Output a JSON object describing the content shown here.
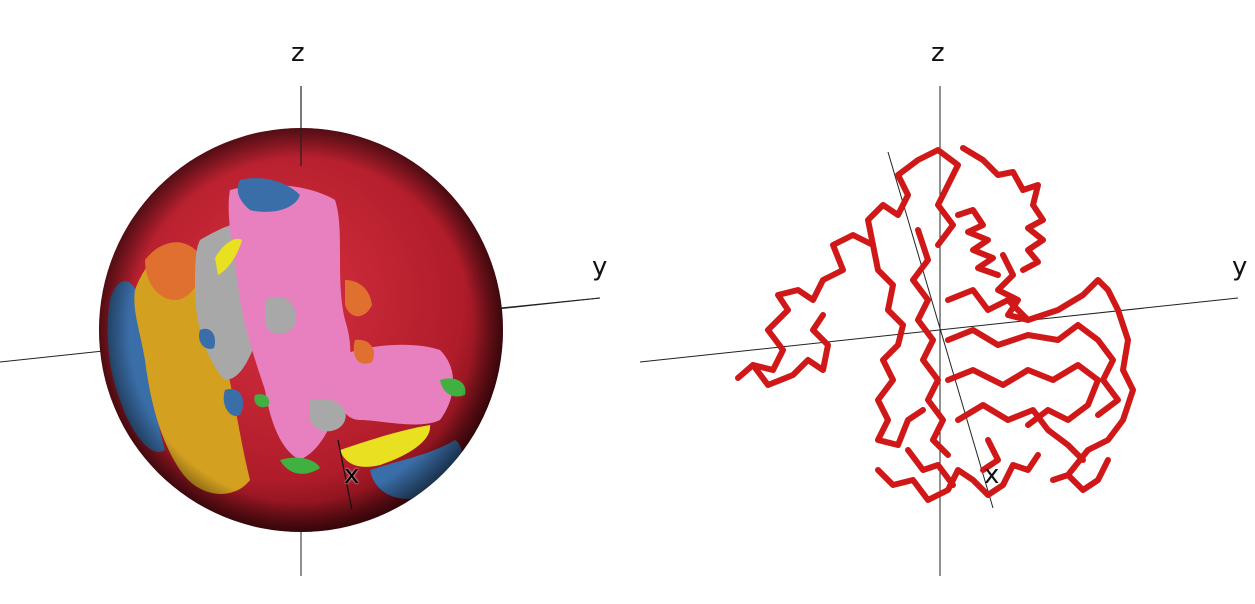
{
  "left_panel": {
    "axis_labels": {
      "z": "z",
      "y": "y",
      "x": "x"
    },
    "colors": {
      "sphere_base": "#b51e2d",
      "patches": [
        "#e880c0",
        "#a8a8a8",
        "#d4a020",
        "#3a6ea8",
        "#e07030",
        "#e8e020",
        "#40b040"
      ]
    }
  },
  "right_panel": {
    "axis_labels": {
      "z": "z",
      "y": "y",
      "x": "x"
    },
    "colors": {
      "ribbon": "#d01818"
    }
  }
}
